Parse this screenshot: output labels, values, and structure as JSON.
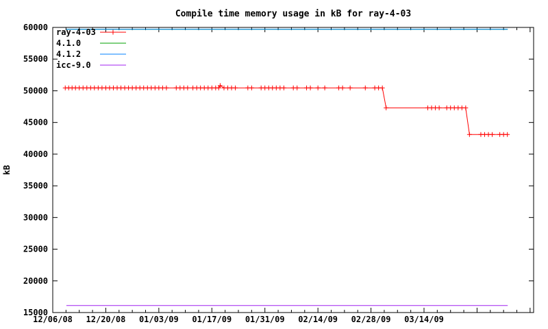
{
  "chart_data": {
    "type": "line",
    "title": "Compile time memory usage in kB for ray-4-03",
    "ylabel": "kB",
    "xlabel": "",
    "grid": false,
    "legend_position": "top-left-inside",
    "y_axis": {
      "min": 15000,
      "max": 60000,
      "step": 5000
    },
    "x_axis": {
      "start_date": "12/06/08",
      "tick_labels": [
        "12/06/08",
        "12/20/08",
        "01/03/09",
        "01/17/09",
        "01/31/09",
        "02/14/09",
        "02/28/09",
        "03/14/09"
      ],
      "tick_day_offsets": [
        0,
        14,
        28,
        42,
        56,
        70,
        84,
        98
      ],
      "major_tick_interval_days": 14,
      "minor_tick_interval_days": 3.5,
      "range_days": [
        0,
        127
      ]
    },
    "series": [
      {
        "name": "4.1.0",
        "color": "#00a000",
        "marker": "none",
        "points_day_kb": [
          [
            3.6,
            59700
          ],
          [
            120.1,
            59700
          ]
        ]
      },
      {
        "name": "4.1.2",
        "color": "#0080ff",
        "marker": "none",
        "points_day_kb": [
          [
            3.6,
            59700
          ],
          [
            120.1,
            59700
          ]
        ]
      },
      {
        "name": "icc-9.0",
        "color": "#a020f0",
        "marker": "none",
        "points_day_kb": [
          [
            3.6,
            16100
          ],
          [
            120.1,
            16100
          ]
        ]
      },
      {
        "name": "ray-4-03",
        "color": "#ff0000",
        "marker": "plus",
        "points_day_kb": [
          [
            3.3,
            50450
          ],
          [
            4.2,
            50450
          ],
          [
            5.1,
            50450
          ],
          [
            6,
            50450
          ],
          [
            7,
            50450
          ],
          [
            8,
            50450
          ],
          [
            9,
            50450
          ],
          [
            10,
            50450
          ],
          [
            11,
            50450
          ],
          [
            12,
            50450
          ],
          [
            13,
            50450
          ],
          [
            14,
            50450
          ],
          [
            15,
            50450
          ],
          [
            16,
            50450
          ],
          [
            17,
            50450
          ],
          [
            18,
            50450
          ],
          [
            19,
            50450
          ],
          [
            20,
            50450
          ],
          [
            21,
            50450
          ],
          [
            22,
            50450
          ],
          [
            23,
            50450
          ],
          [
            24,
            50450
          ],
          [
            25,
            50450
          ],
          [
            26,
            50450
          ],
          [
            27,
            50450
          ],
          [
            28,
            50450
          ],
          [
            29,
            50450
          ],
          [
            30,
            50450
          ],
          [
            32.6,
            50450
          ],
          [
            33.6,
            50450
          ],
          [
            34.6,
            50450
          ],
          [
            35.6,
            50450
          ],
          [
            37,
            50450
          ],
          [
            38,
            50450
          ],
          [
            39,
            50450
          ],
          [
            40,
            50450
          ],
          [
            41,
            50450
          ],
          [
            42,
            50450
          ],
          [
            43,
            50450
          ],
          [
            43.8,
            50450
          ],
          [
            44.2,
            50820
          ],
          [
            45.2,
            50450
          ],
          [
            46.2,
            50450
          ],
          [
            47.2,
            50450
          ],
          [
            48.2,
            50450
          ],
          [
            51.5,
            50450
          ],
          [
            52.5,
            50450
          ],
          [
            55,
            50450
          ],
          [
            56,
            50450
          ],
          [
            57,
            50450
          ],
          [
            58,
            50450
          ],
          [
            59,
            50450
          ],
          [
            60,
            50450
          ],
          [
            61,
            50450
          ],
          [
            63.5,
            50450
          ],
          [
            64.5,
            50450
          ],
          [
            67,
            50450
          ],
          [
            68,
            50450
          ],
          [
            70,
            50450
          ],
          [
            71.8,
            50450
          ],
          [
            75.5,
            50450
          ],
          [
            76.5,
            50450
          ],
          [
            78.5,
            50450
          ],
          [
            82.5,
            50450
          ],
          [
            85,
            50450
          ],
          [
            86,
            50450
          ],
          [
            87,
            50450
          ],
          [
            88,
            47300
          ],
          [
            99,
            47300
          ],
          [
            100,
            47300
          ],
          [
            101,
            47300
          ],
          [
            102,
            47300
          ],
          [
            104,
            47300
          ],
          [
            105,
            47300
          ],
          [
            106,
            47300
          ],
          [
            107,
            47300
          ],
          [
            108,
            47300
          ],
          [
            109,
            47300
          ],
          [
            110,
            43100
          ],
          [
            113,
            43100
          ],
          [
            114,
            43100
          ],
          [
            115,
            43100
          ],
          [
            116,
            43100
          ],
          [
            118,
            43100
          ],
          [
            119,
            43100
          ],
          [
            120,
            43100
          ]
        ]
      }
    ]
  },
  "legend": {
    "items": [
      {
        "label": "ray-4-03",
        "color": "#ff0000",
        "marker": "plus"
      },
      {
        "label": "4.1.0",
        "color": "#00a000",
        "marker": "none"
      },
      {
        "label": "4.1.2",
        "color": "#0080ff",
        "marker": "none"
      },
      {
        "label": "icc-9.0",
        "color": "#a020f0",
        "marker": "none"
      }
    ]
  }
}
